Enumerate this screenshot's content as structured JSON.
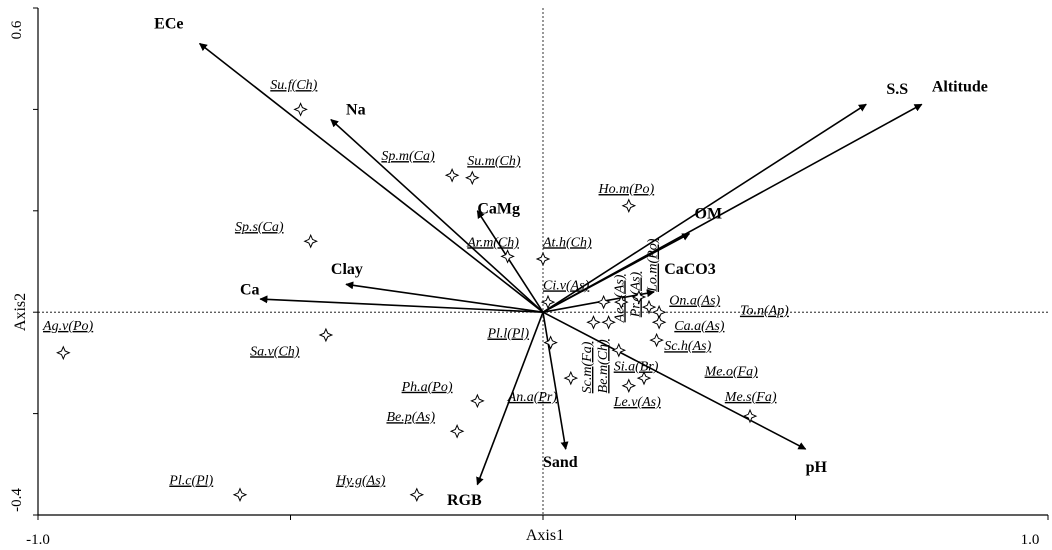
{
  "chart_data": {
    "type": "scatter",
    "subtype": "biplot",
    "xlabel": "Axis1",
    "ylabel": "Axis2",
    "xlim": [
      -1.0,
      1.0
    ],
    "ylim": [
      -0.4,
      0.6
    ],
    "x_ticks": [
      -1.0,
      -0.5,
      0,
      0.5,
      1.0
    ],
    "y_ticks": [
      -0.4,
      -0.2,
      0,
      0.2,
      0.4,
      0.6
    ],
    "x_tick_labels": [
      "-1.0",
      "",
      "",
      "",
      "1.0"
    ],
    "y_tick_labels": [
      "-0.4",
      "",
      "",
      "",
      "",
      "0.6"
    ],
    "zero_lines": true,
    "vectors": [
      {
        "name": "ECe",
        "x": -0.68,
        "y": 0.53,
        "lx": -0.77,
        "ly": 0.56
      },
      {
        "name": "Na",
        "x": -0.42,
        "y": 0.38,
        "lx": -0.39,
        "ly": 0.39
      },
      {
        "name": "CaMg",
        "x": -0.13,
        "y": 0.2,
        "lx": -0.13,
        "ly": 0.195
      },
      {
        "name": "Clay",
        "x": -0.39,
        "y": 0.055,
        "lx": -0.42,
        "ly": 0.075
      },
      {
        "name": "Ca",
        "x": -0.56,
        "y": 0.026,
        "lx": -0.6,
        "ly": 0.035
      },
      {
        "name": "S.S",
        "x": 0.64,
        "y": 0.41,
        "lx": 0.68,
        "ly": 0.43
      },
      {
        "name": "Altitude",
        "x": 0.75,
        "y": 0.41,
        "lx": 0.77,
        "ly": 0.435
      },
      {
        "name": "OM",
        "x": 0.29,
        "y": 0.155,
        "lx": 0.3,
        "ly": 0.185
      },
      {
        "name": "CaCO3",
        "x": 0.22,
        "y": 0.04,
        "lx": 0.24,
        "ly": 0.075
      },
      {
        "name": "pH",
        "x": 0.52,
        "y": -0.27,
        "lx": 0.52,
        "ly": -0.315
      },
      {
        "name": "Sand",
        "x": 0.045,
        "y": -0.27,
        "lx": 0.0,
        "ly": -0.305
      },
      {
        "name": "RGB",
        "x": -0.13,
        "y": -0.34,
        "lx": -0.19,
        "ly": -0.38
      }
    ],
    "species": [
      {
        "name": "Su.f(Ch)",
        "x": -0.48,
        "y": 0.4,
        "lx": -0.54,
        "ly": 0.44
      },
      {
        "name": "Sp.m(Ca)",
        "x": -0.18,
        "y": 0.27,
        "lx": -0.32,
        "ly": 0.3
      },
      {
        "name": "Su.m(Ch)",
        "x": -0.14,
        "y": 0.265,
        "lx": -0.15,
        "ly": 0.29
      },
      {
        "name": "Sp.s(Ca)",
        "x": -0.46,
        "y": 0.14,
        "lx": -0.61,
        "ly": 0.16
      },
      {
        "name": "Ar.m(Ch)",
        "x": -0.07,
        "y": 0.11,
        "lx": -0.15,
        "ly": 0.13
      },
      {
        "name": "At.h(Ch)",
        "x": 0.0,
        "y": 0.105,
        "lx": 0.0,
        "ly": 0.13
      },
      {
        "name": "Ho.m(Po)",
        "x": 0.17,
        "y": 0.21,
        "lx": 0.11,
        "ly": 0.235
      },
      {
        "name": "Ci.v(As)",
        "x": 0.01,
        "y": 0.02,
        "lx": 0.0,
        "ly": 0.045
      },
      {
        "name": "Ag.v(Po)",
        "x": -0.95,
        "y": -0.08,
        "lx": -0.99,
        "ly": -0.035
      },
      {
        "name": "Sa.v(Ch)",
        "x": -0.43,
        "y": -0.045,
        "lx": -0.58,
        "ly": -0.085
      },
      {
        "name": "Pl.l(Pl)",
        "x": 0.015,
        "y": -0.06,
        "lx": -0.11,
        "ly": -0.05
      },
      {
        "name": "Ph.a(Po)",
        "x": -0.13,
        "y": -0.175,
        "lx": -0.28,
        "ly": -0.155
      },
      {
        "name": "An.a(Pr)",
        "x": 0.055,
        "y": -0.13,
        "lx": -0.07,
        "ly": -0.175
      },
      {
        "name": "Be.p(As)",
        "x": -0.17,
        "y": -0.235,
        "lx": -0.31,
        "ly": -0.215
      },
      {
        "name": "Hy.g(As)",
        "x": -0.25,
        "y": -0.36,
        "lx": -0.41,
        "ly": -0.34
      },
      {
        "name": "Pl.c(Pl)",
        "x": -0.6,
        "y": -0.36,
        "lx": -0.74,
        "ly": -0.34
      },
      {
        "name": "On.a(As)",
        "x": 0.21,
        "y": 0.01,
        "lx": 0.25,
        "ly": 0.015
      },
      {
        "name": "To.n(Ap)",
        "x": 0.23,
        "y": 0.0,
        "lx": 0.39,
        "ly": -0.005
      },
      {
        "name": "Ca.a(As)",
        "x": 0.23,
        "y": -0.02,
        "lx": 0.26,
        "ly": -0.035
      },
      {
        "name": "Sc.h(As)",
        "x": 0.225,
        "y": -0.055,
        "lx": 0.24,
        "ly": -0.075
      },
      {
        "name": "Si.a(Br)",
        "x": 0.15,
        "y": -0.075,
        "lx": 0.14,
        "ly": -0.115
      },
      {
        "name": "Me.o(Fa)",
        "x": 0.2,
        "y": -0.13,
        "lx": 0.32,
        "ly": -0.125
      },
      {
        "name": "Le.v(As)",
        "x": 0.17,
        "y": -0.145,
        "lx": 0.14,
        "ly": -0.185
      },
      {
        "name": "Me.s(Fa)",
        "x": 0.41,
        "y": -0.205,
        "lx": 0.36,
        "ly": -0.175
      },
      {
        "name": "Sc.m(Fa)",
        "x": 0.1,
        "y": -0.02,
        "lx": 0.095,
        "ly": -0.16,
        "rot": -90
      },
      {
        "name": "Be.m(Ch)",
        "x": 0.13,
        "y": -0.02,
        "lx": 0.127,
        "ly": -0.16,
        "rot": -90
      },
      {
        "name": "Ae.v(As)",
        "x": 0.12,
        "y": 0.02,
        "lx": 0.159,
        "ly": -0.02,
        "rot": -90
      },
      {
        "name": "Pr.c(As)",
        "x": 0.155,
        "y": 0.02,
        "lx": 0.191,
        "ly": -0.01,
        "rot": -90
      },
      {
        "name": "Lo.m(Po)",
        "x": 0.19,
        "y": 0.03,
        "lx": 0.225,
        "ly": 0.04,
        "rot": -90
      }
    ]
  }
}
